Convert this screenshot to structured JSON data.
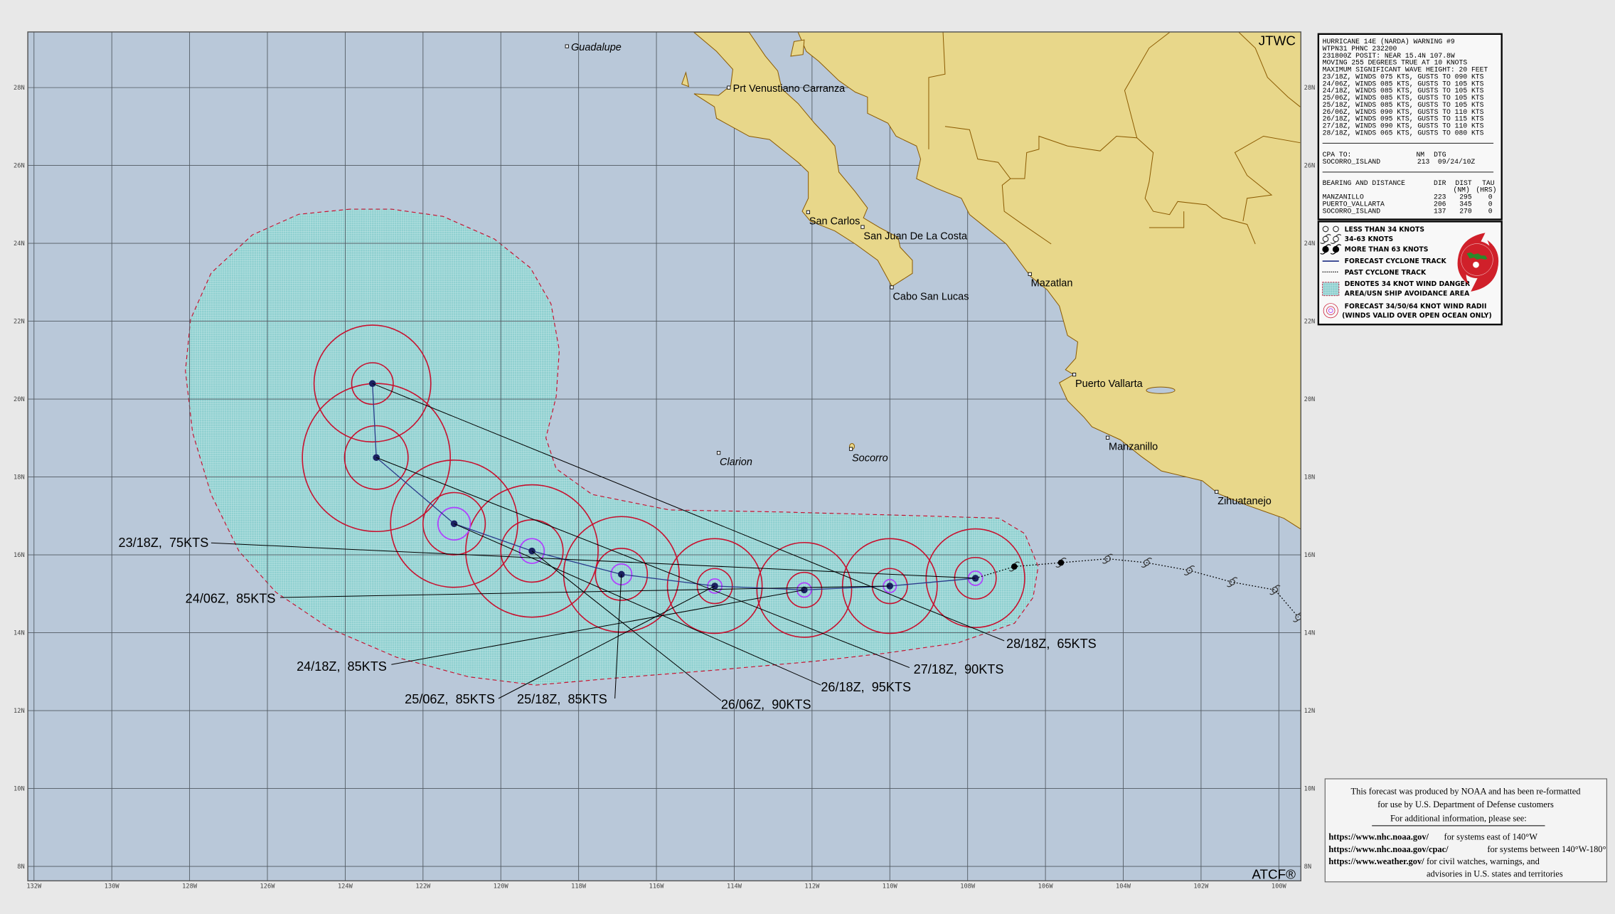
{
  "header": {
    "agency": "JTWC",
    "software": "ATCF®"
  },
  "warning": {
    "lines": [
      "HURRICANE 14E (NARDA) WARNING #9",
      "WTPN31 PHNC 232200",
      "231800Z POSIT: NEAR 15.4N 107.8W",
      "MOVING 255 DEGREES TRUE AT 10 KNOTS",
      "MAXIMUM SIGNIFICANT WAVE HEIGHT: 20 FEET",
      "23/18Z, WINDS 075 KTS, GUSTS TO 090 KTS",
      "24/06Z, WINDS 085 KTS, GUSTS TO 105 KTS",
      "24/18Z, WINDS 085 KTS, GUSTS TO 105 KTS",
      "25/06Z, WINDS 085 KTS, GUSTS TO 105 KTS",
      "25/18Z, WINDS 085 KTS, GUSTS TO 105 KTS",
      "26/06Z, WINDS 090 KTS, GUSTS TO 110 KTS",
      "26/18Z, WINDS 095 KTS, GUSTS TO 115 KTS",
      "27/18Z, WINDS 090 KTS, GUSTS TO 110 KTS",
      "28/18Z, WINDS 065 KTS, GUSTS TO 080 KTS"
    ]
  },
  "cpa": {
    "label": "CPA TO:",
    "nm_header": "NM",
    "dtg_header": "DTG",
    "place": "SOCORRO_ISLAND",
    "nm": "213",
    "dtg": "09/24/10Z"
  },
  "bearing": {
    "title": "BEARING AND DISTANCE",
    "dir_header": "DIR",
    "dist_header": "DIST",
    "dist_unit": "(NM)",
    "tau_header": "TAU",
    "tau_unit": "(HRS)",
    "rows": [
      {
        "place": "MANZANILLO",
        "dir": "223",
        "dist": "295",
        "tau": "0"
      },
      {
        "place": "PUERTO_VALLARTA",
        "dir": "206",
        "dist": "345",
        "tau": "0"
      },
      {
        "place": "SOCORRO_ISLAND",
        "dir": "137",
        "dist": "270",
        "tau": "0"
      }
    ]
  },
  "legend": {
    "items": [
      "LESS THAN 34 KNOTS",
      "34-63 KNOTS",
      "MORE THAN 63 KNOTS",
      "FORECAST CYCLONE TRACK",
      "PAST CYCLONE TRACK",
      "DENOTES 34 KNOT WIND DANGER",
      "AREA/USN SHIP AVOIDANCE AREA",
      "FORECAST 34/50/64 KNOT WIND RADII",
      "(WINDS VALID OVER OPEN OCEAN ONLY)"
    ],
    "logo": "JOINT TYPHOON WARNING CENTER PEARL HARBOR HAWAII"
  },
  "disclaimer": {
    "line1": "This forecast was produced by NOAA and has been re-formatted",
    "line2": "for use by U.S. Department of Defense customers",
    "line3": "For additional information, please see:",
    "links": [
      {
        "url": "https://www.nhc.noaa.gov/",
        "desc": "for systems east of 140°W"
      },
      {
        "url": "https://www.nhc.noaa.gov/cpac/",
        "desc": "for systems between 140°W-180°"
      },
      {
        "url": "https://www.weather.gov/",
        "desc": "for civil watches, warnings, and"
      }
    ],
    "line_last": "advisories in U.S. states and territories"
  },
  "colors": {
    "ocean": "#b9c8d9",
    "land": "#e8d78a",
    "coast": "#8b5a00",
    "radii_34_50": "#c8102e",
    "radii_64": "#b040ff",
    "danger_area": "#8fd0d0",
    "forecast_track": "#2a3a8a"
  },
  "chart_data": {
    "type": "map",
    "lon_ticks": [
      "132W",
      "130W",
      "128W",
      "126W",
      "124W",
      "122W",
      "120W",
      "118W",
      "116W",
      "114W",
      "112W",
      "110W",
      "108W",
      "106W",
      "104W",
      "102W",
      "100W"
    ],
    "lat_ticks": [
      "28N",
      "26N",
      "24N",
      "22N",
      "20N",
      "18N",
      "16N",
      "14N",
      "12N",
      "10N",
      "8N"
    ],
    "lon_range": [
      -132.2,
      -99.4
    ],
    "lat_range": [
      7.6,
      29.4
    ],
    "grid": true,
    "forecast": [
      {
        "label": "23/18Z,  75KTS",
        "lat": 15.4,
        "lon": -107.8,
        "r34_nm": 76,
        "r50_nm": 32,
        "r64_nm": 11
      },
      {
        "label": "24/06Z,  85KTS",
        "lat": 15.2,
        "lon": -110.0,
        "r34_nm": 73,
        "r50_nm": 27,
        "r64_nm": 10
      },
      {
        "label": "24/18Z,  85KTS",
        "lat": 15.1,
        "lon": -112.2,
        "r34_nm": 73,
        "r50_nm": 27,
        "r64_nm": 11
      },
      {
        "label": "25/06Z,  85KTS",
        "lat": 15.2,
        "lon": -114.5,
        "r34_nm": 73,
        "r50_nm": 27,
        "r64_nm": 11
      },
      {
        "label": "25/18Z,  85KTS",
        "lat": 15.5,
        "lon": -116.9,
        "r34_nm": 89,
        "r50_nm": 40,
        "r64_nm": 16
      },
      {
        "label": "26/06Z,  90KTS",
        "lat": 16.1,
        "lon": -119.2,
        "r34_nm": 102,
        "r50_nm": 48,
        "r64_nm": 19
      },
      {
        "label": "26/18Z,  95KTS",
        "lat": 16.8,
        "lon": -121.2,
        "r34_nm": 98,
        "r50_nm": 48,
        "r64_nm": 25
      },
      {
        "label": "27/18Z,  90KTS",
        "lat": 18.5,
        "lon": -123.2,
        "r34_nm": 114,
        "r50_nm": 49,
        "r64_nm": 0
      },
      {
        "label": "28/18Z,  65KTS",
        "lat": 20.4,
        "lon": -123.3,
        "r34_nm": 90,
        "r50_nm": 32,
        "r64_nm": 0
      }
    ],
    "past_track": [
      {
        "lat": 15.7,
        "lon": -106.8,
        "intensity": "more than 63 knots"
      },
      {
        "lat": 15.8,
        "lon": -105.6,
        "intensity": "more than 63 knots"
      },
      {
        "lat": 15.9,
        "lon": -104.4,
        "intensity": "34-63 knots"
      },
      {
        "lat": 15.8,
        "lon": -103.4,
        "intensity": "34-63 knots"
      },
      {
        "lat": 15.6,
        "lon": -102.3,
        "intensity": "34-63 knots"
      },
      {
        "lat": 15.3,
        "lon": -101.2,
        "intensity": "34-63 knots"
      },
      {
        "lat": 15.1,
        "lon": -100.1,
        "intensity": "34-63 knots"
      },
      {
        "lat": 14.4,
        "lon": -99.5,
        "intensity": "34-63 knots"
      }
    ],
    "places": [
      {
        "name": "Guadalupe",
        "lat": 29.06,
        "lon": -118.3,
        "italic": true,
        "pos": "right"
      },
      {
        "name": "Prt Venustiano Carranza",
        "lat": 28.0,
        "lon": -114.14,
        "italic": false,
        "pos": "right"
      },
      {
        "name": "San Carlos",
        "lat": 24.8,
        "lon": -112.1,
        "italic": false,
        "pos": "below"
      },
      {
        "name": "San Juan De La Costa",
        "lat": 24.42,
        "lon": -110.7,
        "italic": false,
        "pos": "below"
      },
      {
        "name": "Cabo San Lucas",
        "lat": 22.87,
        "lon": -109.95,
        "italic": false,
        "pos": "below"
      },
      {
        "name": "Mazatlan",
        "lat": 23.21,
        "lon": -106.4,
        "italic": false,
        "pos": "below"
      },
      {
        "name": "Puerto Vallarta",
        "lat": 20.63,
        "lon": -105.26,
        "italic": false,
        "pos": "below"
      },
      {
        "name": "Manzanillo",
        "lat": 19.01,
        "lon": -104.4,
        "italic": false,
        "pos": "below"
      },
      {
        "name": "Zihuatanejo",
        "lat": 17.62,
        "lon": -101.6,
        "italic": false,
        "pos": "below"
      },
      {
        "name": "Clarion",
        "lat": 18.62,
        "lon": -114.4,
        "italic": true,
        "pos": "below"
      },
      {
        "name": "Socorro",
        "lat": 18.72,
        "lon": -111.0,
        "italic": true,
        "pos": "below"
      }
    ]
  }
}
